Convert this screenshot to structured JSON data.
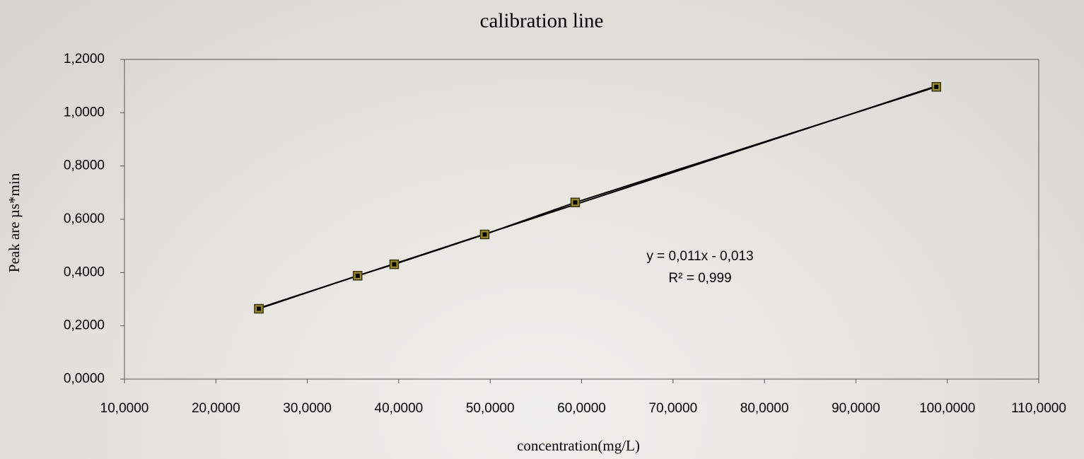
{
  "chart_data": {
    "type": "scatter",
    "title": "calibration line",
    "x_label": "concentration(mg/L)",
    "y_label": "Peak are µs*min",
    "x": [
      24.7,
      35.5,
      39.5,
      49.4,
      59.3,
      98.8
    ],
    "values": [
      0.264,
      0.388,
      0.431,
      0.543,
      0.663,
      1.097
    ],
    "color": "#000000",
    "marker_color": "#9a8a2a",
    "trendline": true,
    "annotations": [
      "y = 0,011x - 0,013",
      "R² = 0,999"
    ],
    "xlim": [
      10,
      110
    ],
    "xticks": [
      {
        "value": 10,
        "label": "10,0000"
      },
      {
        "value": 20,
        "label": "20,0000"
      },
      {
        "value": 30,
        "label": "30,0000"
      },
      {
        "value": 40,
        "label": "40,0000"
      },
      {
        "value": 50,
        "label": "50,0000"
      },
      {
        "value": 60,
        "label": "60,0000"
      },
      {
        "value": 70,
        "label": "70,0000"
      },
      {
        "value": 80,
        "label": "80,0000"
      },
      {
        "value": 90,
        "label": "90,0000"
      },
      {
        "value": 100,
        "label": "100,0000"
      },
      {
        "value": 110,
        "label": "110,0000"
      }
    ],
    "ylim": [
      0,
      1.2
    ],
    "yticks": [
      {
        "value": 0,
        "label": "0,0000"
      },
      {
        "value": 0.2,
        "label": "0,2000"
      },
      {
        "value": 0.4,
        "label": "0,4000"
      },
      {
        "value": 0.6,
        "label": "0,6000"
      },
      {
        "value": 0.8,
        "label": "0,8000"
      },
      {
        "value": 1.0,
        "label": "1,0000"
      },
      {
        "value": 1.2,
        "label": "1,2000"
      }
    ],
    "grid": false
  }
}
